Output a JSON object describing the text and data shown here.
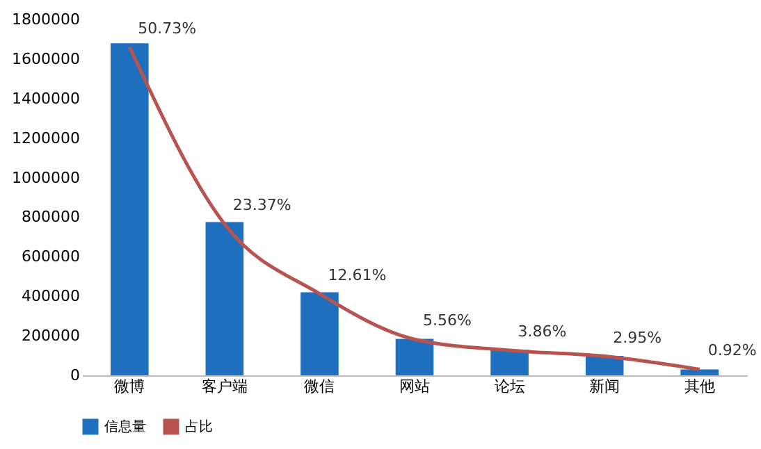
{
  "chart_data": {
    "type": "bar",
    "categories": [
      "微博",
      "客户端",
      "微信",
      "网站",
      "论坛",
      "新闻",
      "其他"
    ],
    "series": [
      {
        "name": "信息量",
        "color": "#1f6fbf",
        "values": [
          1680000,
          775000,
          420000,
          185000,
          130000,
          98000,
          30000
        ]
      },
      {
        "name": "占比",
        "type": "line",
        "axis": "y2",
        "color": "#b85450",
        "values": [
          50.73,
          23.37,
          12.61,
          5.56,
          3.86,
          2.95,
          0.92
        ],
        "value_labels": [
          "50.73%",
          "23.37%",
          "12.61%",
          "5.56%",
          "3.86%",
          "2.95%",
          "0.92%"
        ]
      }
    ],
    "ylim": [
      0,
      1800000
    ],
    "yticks": [
      0,
      200000,
      400000,
      600000,
      800000,
      1000000,
      1200000,
      1400000,
      1600000,
      1800000
    ],
    "grid": false,
    "legend": "bottom",
    "marker": "none",
    "line_style": "solid"
  }
}
